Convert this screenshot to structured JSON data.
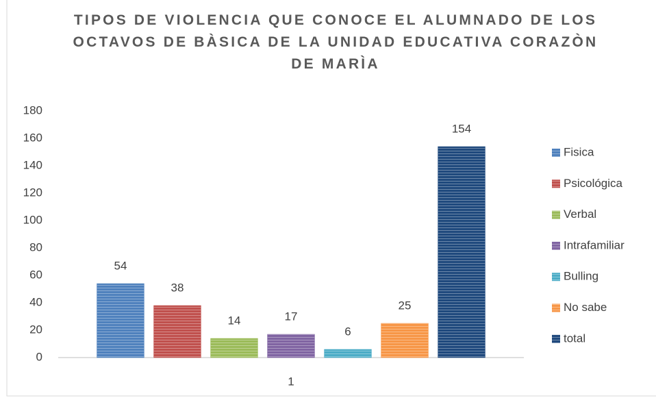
{
  "chart_data": {
    "type": "bar",
    "title": "TIPOS DE VIOLENCIA QUE CONOCE EL ALUMNADO DE LOS OCTAVOS DE BÀSICA DE LA UNIDAD EDUCATIVA CORAZÒN DE MARÌA",
    "categories": [
      "1"
    ],
    "series": [
      {
        "name": "Fisica",
        "color": "#4f81bd",
        "values": [
          54
        ]
      },
      {
        "name": "Psicológica",
        "color": "#c0504d",
        "values": [
          38
        ]
      },
      {
        "name": "Verbal",
        "color": "#9bbb59",
        "values": [
          14
        ]
      },
      {
        "name": "Intrafamiliar",
        "color": "#8064a2",
        "values": [
          17
        ]
      },
      {
        "name": "Bulling",
        "color": "#4bacc6",
        "values": [
          6
        ]
      },
      {
        "name": "No sabe",
        "color": "#f79646",
        "values": [
          25
        ]
      },
      {
        "name": "total",
        "color": "#1f497d",
        "values": [
          154
        ]
      }
    ],
    "ylim": [
      0,
      180
    ],
    "yticks": [
      0,
      20,
      40,
      60,
      80,
      100,
      120,
      140,
      160,
      180
    ],
    "grid": false,
    "legend": "right"
  }
}
